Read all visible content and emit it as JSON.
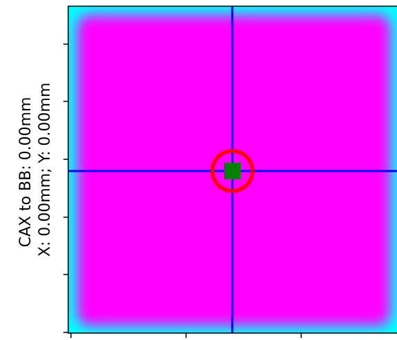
{
  "chart_data": {
    "type": "heatmap",
    "ylabel_lines": [
      "CAX to BB: 0.00mm",
      "X: 0.00mm; Y: 0.00mm"
    ],
    "colors": {
      "field": "#ff00ff",
      "edge": "#00ffff",
      "crosshair": "#0000ff",
      "ring": "#ff0000",
      "marker": "#008000"
    },
    "grid": false
  }
}
